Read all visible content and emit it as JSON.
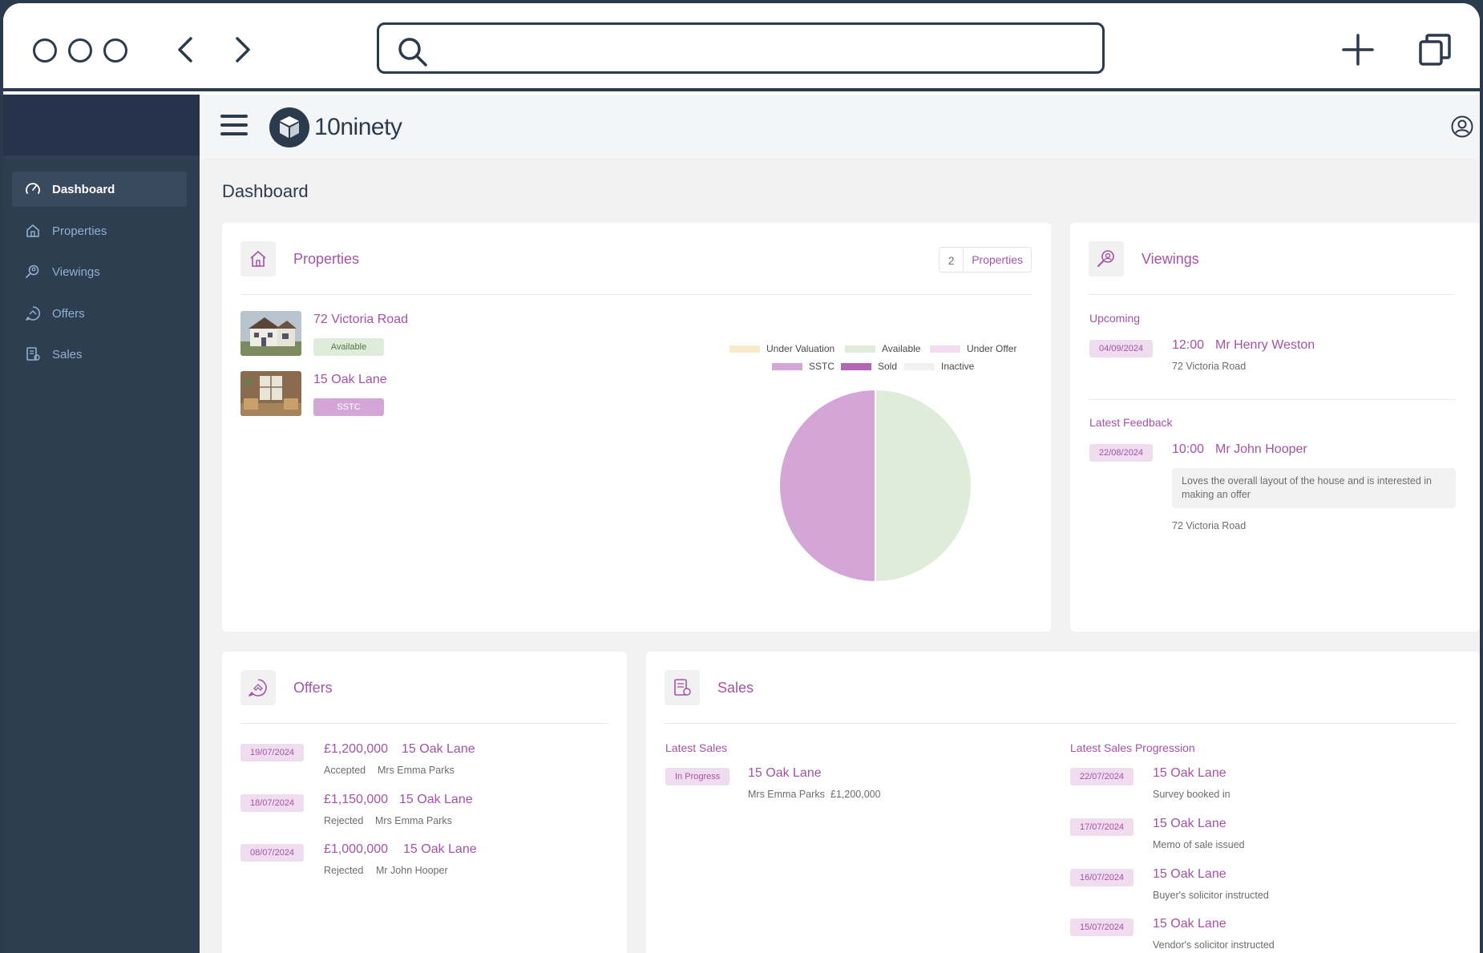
{
  "app": {
    "logo_text": "10ninety",
    "page_title": "Dashboard"
  },
  "sidebar": {
    "items": [
      {
        "label": "Dashboard",
        "icon": "gauge-icon",
        "active": true
      },
      {
        "label": "Properties",
        "icon": "home-icon"
      },
      {
        "label": "Viewings",
        "icon": "search-person-icon"
      },
      {
        "label": "Offers",
        "icon": "offer-chat-icon"
      },
      {
        "label": "Sales",
        "icon": "contract-icon"
      }
    ]
  },
  "properties_card": {
    "title": "Properties",
    "count": "2",
    "count_label": "Properties",
    "items": [
      {
        "name": "72 Victoria Road",
        "status": "Available"
      },
      {
        "name": "15 Oak Lane",
        "status": "SSTC"
      }
    ],
    "legend": [
      "Under Valuation",
      "Available",
      "Under Offer",
      "SSTC",
      "Sold",
      "Inactive"
    ]
  },
  "chart_data": {
    "type": "pie",
    "categories": [
      "Under Valuation",
      "Available",
      "Under Offer",
      "SSTC",
      "Sold",
      "Inactive"
    ],
    "values": [
      0,
      1,
      0,
      1,
      0,
      0
    ],
    "colors": [
      "#f6ebc6",
      "#dfecd9",
      "#f3dcef",
      "#d4a6d8",
      "#b266b5",
      "#f1f1f1"
    ],
    "legend_position": "top"
  },
  "viewings_card": {
    "title": "Viewings",
    "upcoming_label": "Upcoming",
    "upcoming": {
      "date": "04/09/2024",
      "time": "12:00",
      "name": "Mr Henry Weston",
      "address": "72 Victoria Road"
    },
    "feedback_label": "Latest Feedback",
    "feedback": {
      "date": "22/08/2024",
      "time": "10:00",
      "name": "Mr John Hooper",
      "text": "Loves the overall layout of the house and is interested in making an offer",
      "address": "72 Victoria Road"
    }
  },
  "offers_card": {
    "title": "Offers",
    "items": [
      {
        "date": "19/07/2024",
        "amount": "£1,200,000",
        "property": "15 Oak Lane",
        "status": "Accepted",
        "buyer": "Mrs Emma Parks"
      },
      {
        "date": "18/07/2024",
        "amount": "£1,150,000",
        "property": "15 Oak Lane",
        "status": "Rejected",
        "buyer": "Mrs Emma Parks"
      },
      {
        "date": "08/07/2024",
        "amount": "£1,000,000",
        "property": "15 Oak Lane",
        "status": "Rejected",
        "buyer": "Mr John Hooper"
      }
    ]
  },
  "sales_card": {
    "title": "Sales",
    "latest_label": "Latest Sales",
    "latest": {
      "status": "In Progress",
      "property": "15 Oak Lane",
      "buyer": "Mrs Emma Parks",
      "amount": "£1,200,000"
    },
    "progression_label": "Latest Sales Progression",
    "progression": [
      {
        "date": "22/07/2024",
        "property": "15 Oak Lane",
        "note": "Survey booked in"
      },
      {
        "date": "17/07/2024",
        "property": "15 Oak Lane",
        "note": "Memo of sale issued"
      },
      {
        "date": "16/07/2024",
        "property": "15 Oak Lane",
        "note": "Buyer's solicitor instructed"
      },
      {
        "date": "15/07/2024",
        "property": "15 Oak Lane",
        "note": "Vendor's solicitor instructed"
      }
    ]
  },
  "colors": {
    "accent": "#a552a8",
    "sidebar": "#2e3d50",
    "available": "#dfecd9",
    "sstc": "#d4a6d8"
  }
}
